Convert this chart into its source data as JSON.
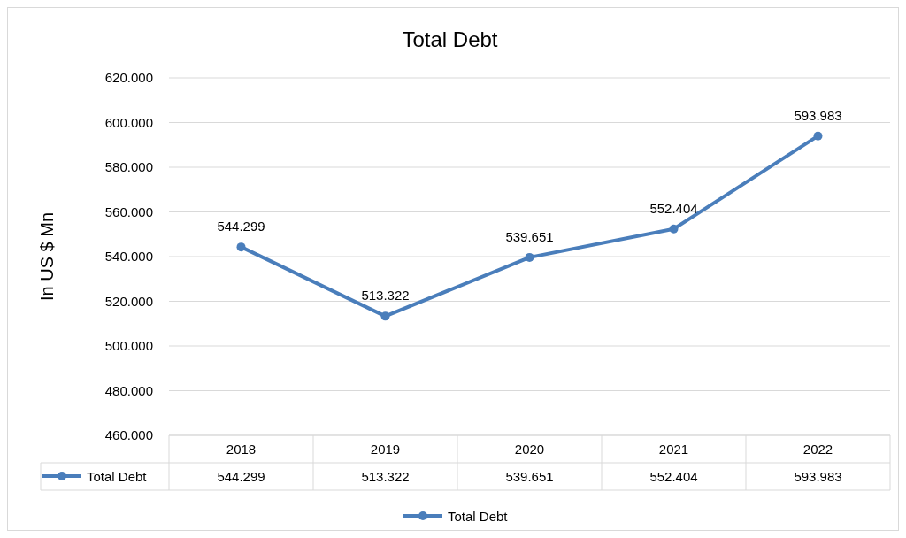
{
  "chart_data": {
    "type": "line",
    "title": "Total Debt",
    "ylabel": "In US $ Mn",
    "categories": [
      "2018",
      "2019",
      "2020",
      "2021",
      "2022"
    ],
    "series": [
      {
        "name": "Total Debt",
        "color": "#4a7ebb",
        "values": [
          544.299,
          513.322,
          539.651,
          552.404,
          593.983
        ],
        "value_labels": [
          "544.299",
          "513.322",
          "539.651",
          "552.404",
          "593.983"
        ]
      }
    ],
    "ylim": [
      460,
      620
    ],
    "yticks": [
      {
        "value": 460,
        "label": "460.000"
      },
      {
        "value": 480,
        "label": "480.000"
      },
      {
        "value": 500,
        "label": "500.000"
      },
      {
        "value": 520,
        "label": "520.000"
      },
      {
        "value": 540,
        "label": "540.000"
      },
      {
        "value": 560,
        "label": "560.000"
      },
      {
        "value": 580,
        "label": "580.000"
      },
      {
        "value": 600,
        "label": "600.000"
      },
      {
        "value": 620,
        "label": "620.000"
      }
    ],
    "annotations": [
      "544.299",
      "513.322",
      "539.651",
      "552.404",
      "593.983"
    ],
    "grid": "y",
    "legend": "bottom",
    "marker": "circle",
    "line_style": "solid",
    "data_labels": true
  }
}
